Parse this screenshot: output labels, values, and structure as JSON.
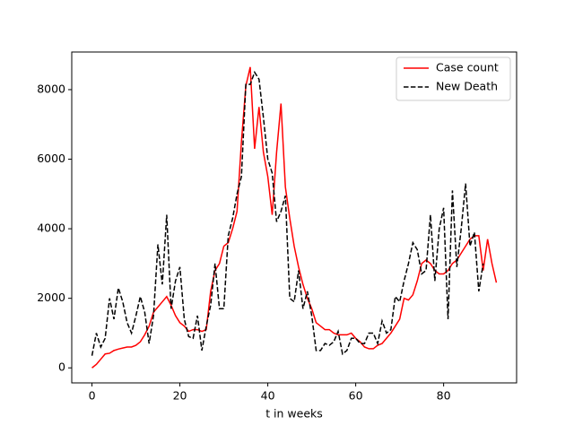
{
  "chart_data": {
    "type": "line",
    "xlabel": "t in weeks",
    "x": [
      0,
      1,
      2,
      3,
      4,
      5,
      6,
      7,
      8,
      9,
      10,
      11,
      12,
      13,
      14,
      15,
      16,
      17,
      18,
      19,
      20,
      21,
      22,
      23,
      24,
      25,
      26,
      27,
      28,
      29,
      30,
      31,
      32,
      33,
      34,
      35,
      36,
      37,
      38,
      39,
      40,
      41,
      42,
      43,
      44,
      45,
      46,
      47,
      48,
      49,
      50,
      51,
      52,
      53,
      54,
      55,
      56,
      57,
      58,
      59,
      60,
      61,
      62,
      63,
      64,
      65,
      66,
      67,
      68,
      69,
      70,
      71,
      72,
      73,
      74,
      75,
      76,
      77,
      78,
      79,
      80,
      81,
      82,
      83,
      84,
      85,
      86,
      87,
      88,
      89,
      90,
      91,
      92
    ],
    "series": [
      {
        "name": "Case count",
        "color": "#ff0000",
        "dash": false,
        "values": [
          0,
          100,
          250,
          400,
          420,
          500,
          540,
          570,
          600,
          600,
          650,
          750,
          950,
          1200,
          1600,
          1750,
          1900,
          2050,
          1800,
          1500,
          1300,
          1200,
          1050,
          1100,
          1100,
          1050,
          1100,
          2200,
          2800,
          3000,
          3500,
          3600,
          4000,
          4500,
          6500,
          8100,
          8650,
          6300,
          7500,
          6200,
          5500,
          4400,
          6200,
          7600,
          5200,
          4300,
          3500,
          2900,
          2400,
          2000,
          1700,
          1300,
          1200,
          1100,
          1100,
          1000,
          950,
          950,
          950,
          1000,
          850,
          750,
          600,
          550,
          550,
          650,
          700,
          850,
          1000,
          1200,
          1400,
          2000,
          1950,
          2100,
          2500,
          3000,
          3100,
          3000,
          2800,
          2700,
          2700,
          2800,
          3000,
          3100,
          3300,
          3500,
          3700,
          3800,
          3800,
          2800,
          3700,
          3000,
          2450
        ]
      },
      {
        "name": "New Death",
        "color": "#000000",
        "dash": true,
        "values": [
          350,
          1000,
          600,
          850,
          2000,
          1400,
          2300,
          1900,
          1300,
          1000,
          1500,
          2050,
          1600,
          700,
          1500,
          3550,
          2400,
          4400,
          1700,
          2500,
          2900,
          1400,
          900,
          850,
          1500,
          500,
          1200,
          1800,
          3000,
          1700,
          1700,
          3800,
          4300,
          5000,
          5500,
          8150,
          8150,
          8500,
          8300,
          7200,
          6000,
          5600,
          4200,
          4500,
          4950,
          2000,
          1900,
          2800,
          1700,
          2200,
          1500,
          500,
          500,
          700,
          650,
          750,
          1050,
          400,
          500,
          850,
          850,
          700,
          700,
          1000,
          1000,
          700,
          1350,
          1000,
          1100,
          2050,
          1900,
          2500,
          3000,
          3600,
          3400,
          2700,
          2800,
          4400,
          2500,
          4000,
          4600,
          1400,
          5100,
          2900,
          4000,
          5300,
          3500,
          3900,
          2200,
          3000,
          null,
          null,
          null
        ]
      }
    ],
    "xlim": [
      -4.6,
      96.6
    ],
    "ylim": [
      -432,
      9082
    ],
    "xticks": [
      0,
      20,
      40,
      60,
      80
    ],
    "yticks": [
      0,
      2000,
      4000,
      6000,
      8000
    ],
    "legend": "upper right"
  }
}
